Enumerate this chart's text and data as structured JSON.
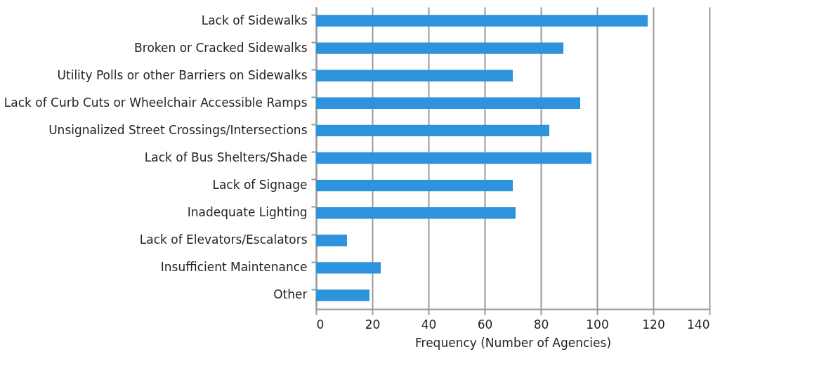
{
  "chart_data": {
    "type": "bar",
    "orientation": "horizontal",
    "xlabel": "Frequency (Number of Agencies)",
    "categories": [
      "Lack of Sidewalks",
      "Broken or Cracked Sidewalks",
      "Utility Polls or other Barriers on Sidewalks",
      "Lack of Curb Cuts or Wheelchair Accessible Ramps",
      "Unsignalized Street Crossings/Intersections",
      "Lack of Bus Shelters/Shade",
      "Lack of Signage",
      "Inadequate Lighting",
      "Lack of Elevators/Escalators",
      "Insufficient Maintenance",
      "Other"
    ],
    "values": [
      118,
      88,
      70,
      94,
      83,
      98,
      70,
      71,
      11,
      23,
      19
    ],
    "color": "#2e93dd",
    "xlim": [
      0,
      140
    ],
    "xticks": [
      0,
      20,
      40,
      60,
      80,
      100,
      120,
      140
    ],
    "grid": "x"
  }
}
